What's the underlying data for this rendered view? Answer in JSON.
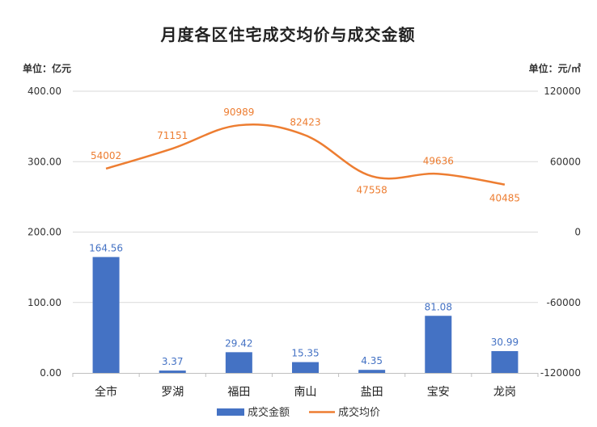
{
  "chart_data": {
    "type": "bar",
    "title": "月度各区住宅成交均价与成交金额",
    "left_unit": "单位：亿元",
    "right_unit": "单位：元/㎡",
    "categories": [
      "全市",
      "罗湖",
      "福田",
      "南山",
      "盐田",
      "宝安",
      "龙岗"
    ],
    "series": [
      {
        "name": "成交金额",
        "kind": "bar",
        "axis": "left",
        "color": "#4472C4",
        "values": [
          164.56,
          3.37,
          29.42,
          15.35,
          4.35,
          81.08,
          30.99
        ],
        "labels": [
          "164.56",
          "3.37",
          "29.42",
          "15.35",
          "4.35",
          "81.08",
          "30.99"
        ]
      },
      {
        "name": "成交均价",
        "kind": "line",
        "axis": "right",
        "color": "#ED7D31",
        "smooth": true,
        "values": [
          54002,
          71151,
          90989,
          82423,
          47558,
          49636,
          40485
        ],
        "labels": [
          "54002",
          "71151",
          "90989",
          "82423",
          "47558",
          "49636",
          "40485"
        ]
      }
    ],
    "y_left": {
      "min": 0,
      "max": 400,
      "ticks": [
        "0.00",
        "100.00",
        "200.00",
        "300.00",
        "400.00"
      ]
    },
    "y_right": {
      "min": -120000,
      "max": 120000,
      "ticks": [
        "-120000",
        "-60000",
        "0",
        "60000",
        "120000"
      ]
    },
    "grid": true,
    "legend": "bottom"
  }
}
